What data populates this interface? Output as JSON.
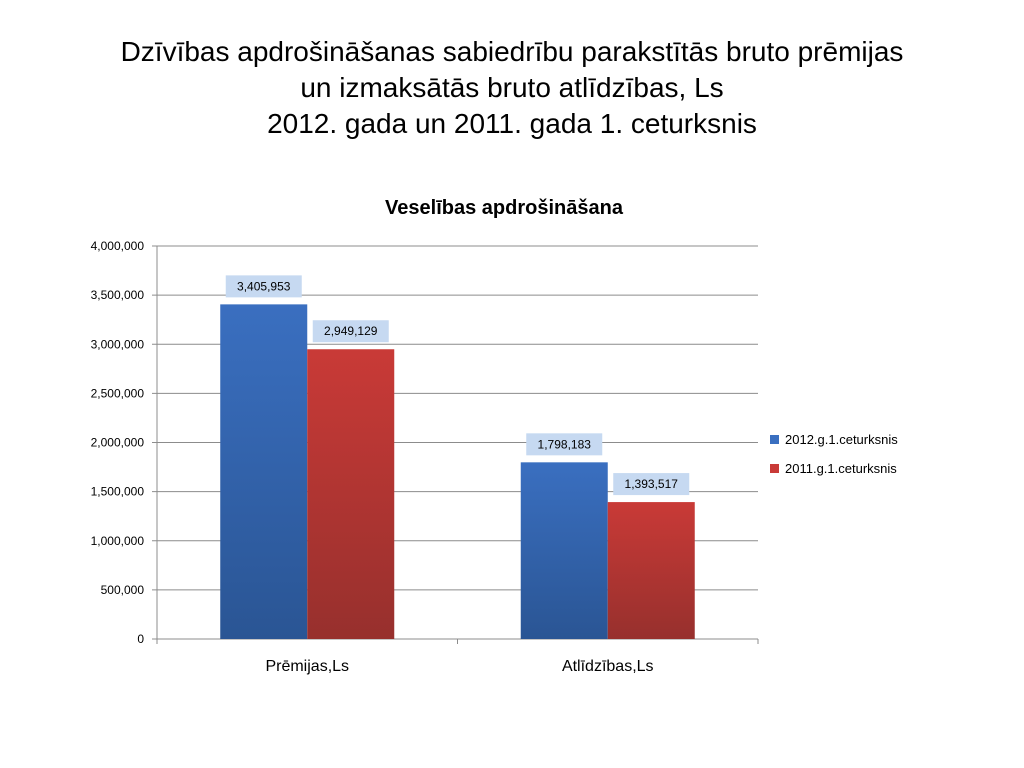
{
  "slide": {
    "title_lines": [
      "Dzīvības apdrošināšanas sabiedrību parakstītās bruto prēmijas",
      "un izmaksātās bruto atlīdzības, Ls",
      "2012. gada un 2011. gada 1. ceturksnis"
    ]
  },
  "chart_data": {
    "type": "bar",
    "title": "Veselības apdrošināšana",
    "categories": [
      "Prēmijas,Ls",
      "Atlīdzības,Ls"
    ],
    "series": [
      {
        "name": "2012.g.1.ceturksnis",
        "values": [
          3405953,
          1798183
        ],
        "value_labels": [
          "3,405,953",
          "1,798,183"
        ],
        "color": "#3a6fc0",
        "color_dark": "#2a5594",
        "label_bg": "#c6d9f1"
      },
      {
        "name": "2011.g.1.ceturksnis",
        "values": [
          2949129,
          1393517
        ],
        "value_labels": [
          "2,949,129",
          "1,393,517"
        ],
        "color": "#c93a37",
        "color_dark": "#97302d",
        "label_bg": "#c6d9f1"
      }
    ],
    "ylim": [
      0,
      4000000
    ],
    "yticks": [
      0,
      500000,
      1000000,
      1500000,
      2000000,
      2500000,
      3000000,
      3500000,
      4000000
    ],
    "ytick_labels": [
      "0",
      "500,000",
      "1,000,000",
      "1,500,000",
      "2,000,000",
      "2,500,000",
      "3,000,000",
      "3,500,000",
      "4,000,000"
    ],
    "grid": true,
    "legend_position": "right"
  }
}
